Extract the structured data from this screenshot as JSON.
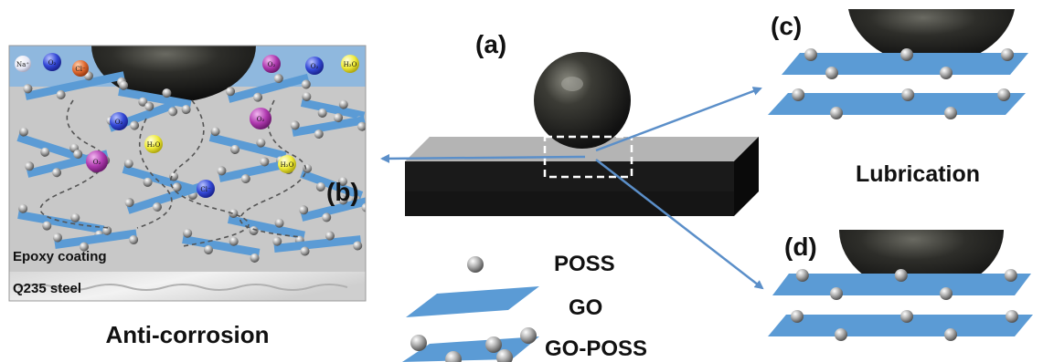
{
  "panels": {
    "a": "(a)",
    "b": "(b)",
    "c": "(c)",
    "d": "(d)"
  },
  "captions": {
    "anti_corrosion": "Anti-corrosion",
    "lubrication": "Lubrication"
  },
  "layers": {
    "epoxy": "Epoxy coating",
    "steel": "Q235 steel"
  },
  "legend": {
    "poss": "POSS",
    "go": "GO",
    "go_poss": "GO-POSS"
  },
  "species": [
    {
      "id": "na",
      "text": "Na⁺"
    },
    {
      "id": "o2a",
      "text": "O₂"
    },
    {
      "id": "cl",
      "text": "Cl⁻"
    },
    {
      "id": "o2b",
      "text": "O₂"
    },
    {
      "id": "o2c",
      "text": "O₂"
    },
    {
      "id": "h2o1",
      "text": "H₂O"
    },
    {
      "id": "o2d",
      "text": "O₂"
    },
    {
      "id": "h2o2",
      "text": "H₂O"
    },
    {
      "id": "o2e",
      "text": "O₂"
    },
    {
      "id": "o2f",
      "text": "O₂"
    },
    {
      "id": "h2o3",
      "text": "H₂O"
    },
    {
      "id": "cl2",
      "text": "Cl⁻"
    },
    {
      "id": "o2g",
      "text": "O₂"
    }
  ],
  "colors": {
    "go_sheet": "#5b9bd5",
    "water": "#8fb8de",
    "coating": "#c8c8c8",
    "steel_top": "#808080",
    "steel_side": "#1a1a1a",
    "arrow": "#5b8fc9"
  }
}
